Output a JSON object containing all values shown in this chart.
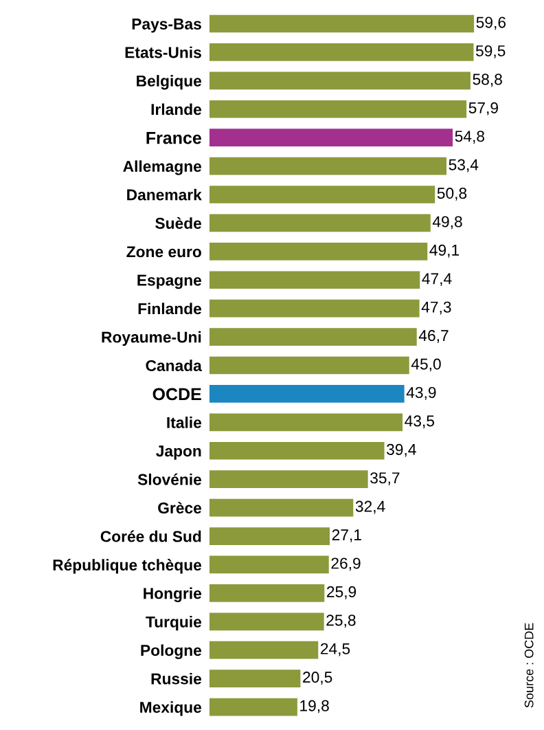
{
  "chart_data": {
    "type": "bar",
    "orientation": "horizontal",
    "data_labels": true,
    "grid": false,
    "legend": false,
    "categories": [
      "Pays-Bas",
      "Etats-Unis",
      "Belgique",
      "Irlande",
      "France",
      "Allemagne",
      "Danemark",
      "Suède",
      "Zone euro",
      "Espagne",
      "Finlande",
      "Royaume-Uni",
      "Canada",
      "OCDE",
      "Italie",
      "Japon",
      "Slovénie",
      "Grèce",
      "Corée du Sud",
      "République tchèque",
      "Hongrie",
      "Turquie",
      "Pologne",
      "Russie",
      "Mexique"
    ],
    "values": [
      59.6,
      59.5,
      58.8,
      57.9,
      54.8,
      53.4,
      50.8,
      49.8,
      49.1,
      47.4,
      47.3,
      46.7,
      45.0,
      43.9,
      43.5,
      39.4,
      35.7,
      32.4,
      27.1,
      26.9,
      25.9,
      25.8,
      24.5,
      20.5,
      19.8
    ],
    "value_labels": [
      "59,6",
      "59,5",
      "58,8",
      "57,9",
      "54,8",
      "53,4",
      "50,8",
      "49,8",
      "49,1",
      "47,4",
      "47,3",
      "46,7",
      "45,0",
      "43,9",
      "43,5",
      "39,4",
      "35,7",
      "32,4",
      "27,1",
      "26,9",
      "25,9",
      "25,8",
      "24,5",
      "20,5",
      "19,8"
    ],
    "colors": [
      "#8c9a3c",
      "#8c9a3c",
      "#8c9a3c",
      "#8c9a3c",
      "#a3308f",
      "#8c9a3c",
      "#8c9a3c",
      "#8c9a3c",
      "#8c9a3c",
      "#8c9a3c",
      "#8c9a3c",
      "#8c9a3c",
      "#8c9a3c",
      "#1b86c0",
      "#8c9a3c",
      "#8c9a3c",
      "#8c9a3c",
      "#8c9a3c",
      "#8c9a3c",
      "#8c9a3c",
      "#8c9a3c",
      "#8c9a3c",
      "#8c9a3c",
      "#8c9a3c",
      "#8c9a3c"
    ],
    "annotations": [
      "Source : OCDE"
    ]
  }
}
